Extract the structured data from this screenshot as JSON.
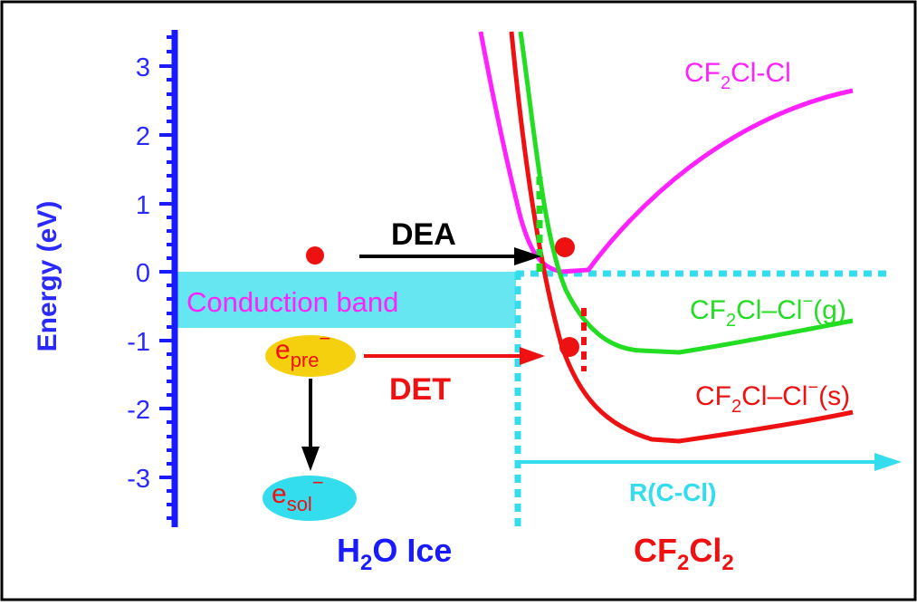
{
  "colors": {
    "axis": "#1a1aff",
    "conduction_band": "#66e6f0",
    "cf2clcl": "#ff22ff",
    "anion_gas": "#22dd22",
    "anion_solid": "#ee1111",
    "cyan": "#33ddee",
    "black": "#000000",
    "red": "#ee1111",
    "yellow": "#f5d00e"
  },
  "axis": {
    "ylabel": "Energy (eV)",
    "ticks": [
      "3",
      "2",
      "1",
      "0",
      "-1",
      "-2",
      "-3"
    ]
  },
  "labels": {
    "conduction_band": "Conduction band",
    "dea": "DEA",
    "det": "DET",
    "r_axis": "R(C-Cl)",
    "curve_neutral": {
      "pre": "CF",
      "sub": "2",
      "post": "Cl-Cl"
    },
    "curve_gas": {
      "pre": "CF",
      "sub": "2",
      "mid": "Cl–Cl",
      "sup": "−",
      "post": "(g)"
    },
    "curve_solid": {
      "pre": "CF",
      "sub": "2",
      "mid": "Cl–Cl",
      "sup": "−",
      "post": "(s)"
    },
    "e_pre": {
      "base": "e",
      "sub": "pre",
      "sup": "−"
    },
    "e_sol": {
      "base": "e",
      "sub": "sol",
      "sup": "−"
    },
    "h2o_ice": {
      "pre": "H",
      "sub": "2",
      "post": "O Ice"
    },
    "cf2cl2": {
      "pre": "CF",
      "sub1": "2",
      "mid": "Cl",
      "sub2": "2"
    }
  }
}
